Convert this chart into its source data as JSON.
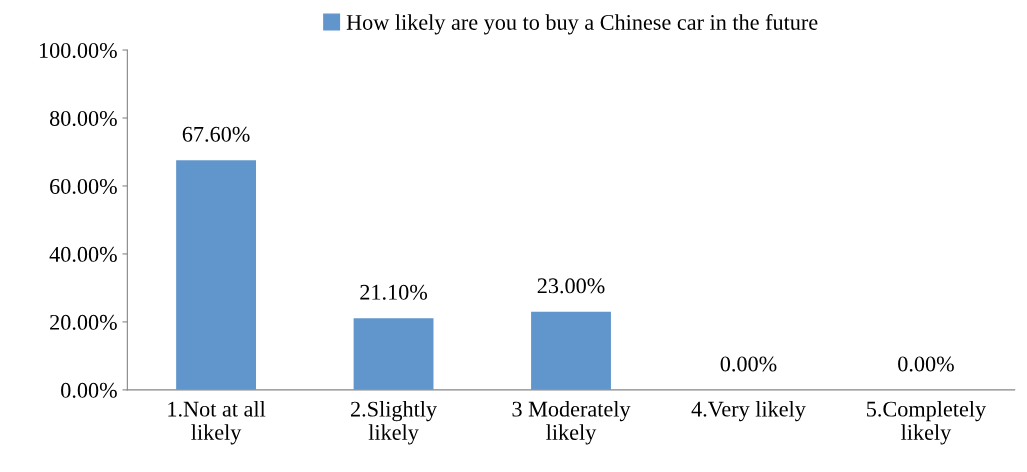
{
  "chart_data": {
    "type": "bar",
    "categories": [
      "1.Not at all likely",
      "2.Slightly likely",
      "3 Moderately likely",
      "4.Very likely",
      "5.Completely likely"
    ],
    "series": [
      {
        "name": "How likely are you to buy a Chinese car in the future",
        "color": "#6096cc",
        "values": [
          67.6,
          21.1,
          23.0,
          0,
          0
        ],
        "value_labels": [
          "67.60%",
          "21.10%",
          "23.00%",
          "0.00%",
          "0.00%"
        ]
      }
    ],
    "ylim": [
      0,
      100
    ],
    "yticks": [
      {
        "value": 0,
        "label": "0.00%"
      },
      {
        "value": 20,
        "label": "20.00%"
      },
      {
        "value": 40,
        "label": "40.00%"
      },
      {
        "value": 60,
        "label": "60.00%"
      },
      {
        "value": 80,
        "label": "80.00%"
      },
      {
        "value": 100,
        "label": "100.00%"
      }
    ],
    "grid": false,
    "legend": "top"
  }
}
